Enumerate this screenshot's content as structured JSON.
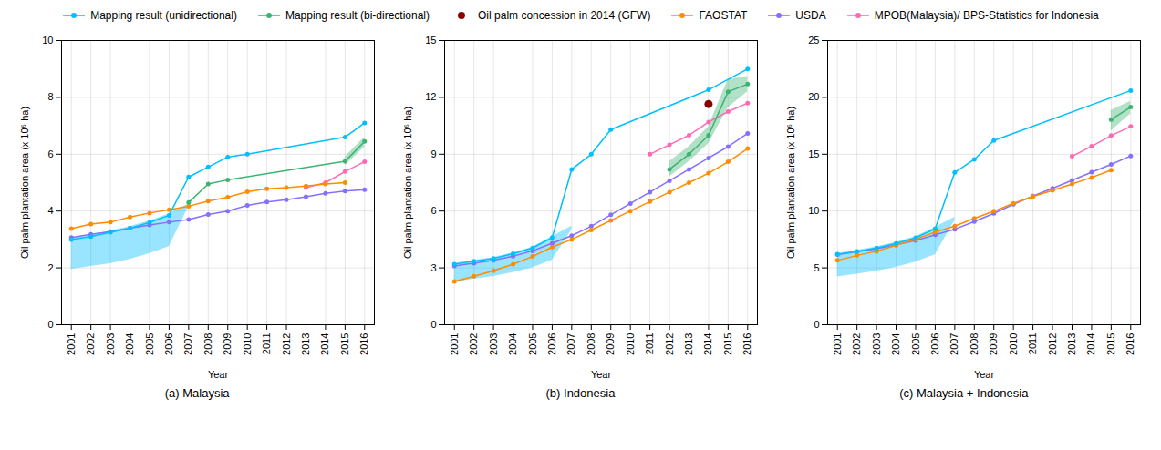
{
  "chart_data": [
    {
      "type": "line",
      "title": "(a) Malaysia",
      "xlabel": "Year",
      "ylabel": "Oil palm plantation area (x 10⁶ ha)",
      "x": [
        2001,
        2002,
        2003,
        2004,
        2005,
        2006,
        2007,
        2008,
        2009,
        2010,
        2011,
        2012,
        2013,
        2014,
        2015,
        2016
      ],
      "xlim": [
        2000.5,
        2016.5
      ],
      "xticks": [
        2001,
        2002,
        2003,
        2004,
        2005,
        2006,
        2007,
        2008,
        2009,
        2010,
        2011,
        2012,
        2013,
        2014,
        2015,
        2016
      ],
      "ylim": [
        0,
        10
      ],
      "yticks": [
        0,
        2,
        4,
        6,
        8,
        10
      ],
      "grid": true,
      "legend": "top",
      "marker": "circle",
      "series": [
        {
          "name": "Mapping result (unidirectional)",
          "color": "#00BFFF",
          "values": [
            3.0,
            3.1,
            3.25,
            3.4,
            3.6,
            3.85,
            5.2,
            5.55,
            5.9,
            6.0,
            null,
            null,
            null,
            null,
            6.6,
            7.1
          ],
          "lower": [
            1.95,
            2.05,
            2.15,
            2.3,
            2.5,
            2.75,
            4.15,
            null,
            null,
            null,
            null,
            null,
            null,
            null,
            null,
            null
          ],
          "upper": [
            3.05,
            3.15,
            3.3,
            3.45,
            3.65,
            3.9,
            4.25,
            null,
            null,
            null,
            null,
            null,
            null,
            null,
            null,
            null
          ]
        },
        {
          "name": "Mapping result (bi-directional)",
          "color": "#3CB371",
          "values": [
            null,
            null,
            null,
            null,
            null,
            null,
            4.3,
            4.95,
            5.1,
            null,
            null,
            null,
            null,
            null,
            5.75,
            6.45
          ],
          "lower": [
            null,
            null,
            null,
            null,
            null,
            null,
            null,
            null,
            null,
            null,
            null,
            null,
            null,
            null,
            5.6,
            6.25
          ],
          "upper": [
            null,
            null,
            null,
            null,
            null,
            null,
            null,
            null,
            null,
            null,
            null,
            null,
            null,
            null,
            5.9,
            6.6
          ]
        },
        {
          "name": "FAOSTAT",
          "color": "#FF8C00",
          "values": [
            3.38,
            3.54,
            3.61,
            3.79,
            3.93,
            4.05,
            4.17,
            4.35,
            4.49,
            4.68,
            4.78,
            4.82,
            4.88,
            4.95,
            5.0,
            null
          ]
        },
        {
          "name": "USDA",
          "color": "#8470FF",
          "values": [
            3.07,
            3.18,
            3.28,
            3.4,
            3.51,
            3.61,
            3.7,
            3.88,
            4.0,
            4.2,
            4.32,
            4.4,
            4.5,
            4.62,
            4.7,
            4.75
          ]
        },
        {
          "name": "MPOB(Malaysia)/ BPS-Statistics for Indonesia",
          "color": "#FF69B4",
          "values": [
            null,
            null,
            null,
            null,
            null,
            null,
            null,
            null,
            null,
            null,
            null,
            null,
            4.82,
            5.0,
            5.39,
            5.74
          ]
        }
      ]
    },
    {
      "type": "line",
      "title": "(b) Indonesia",
      "xlabel": "Year",
      "ylabel": "Oil palm plantation area (x 10⁶ ha)",
      "x": [
        2001,
        2002,
        2003,
        2004,
        2005,
        2006,
        2007,
        2008,
        2009,
        2010,
        2011,
        2012,
        2013,
        2014,
        2015,
        2016
      ],
      "xlim": [
        2000.5,
        2016.5
      ],
      "xticks": [
        2001,
        2002,
        2003,
        2004,
        2005,
        2006,
        2007,
        2008,
        2009,
        2010,
        2011,
        2012,
        2013,
        2014,
        2015,
        2016
      ],
      "ylim": [
        0,
        15
      ],
      "yticks": [
        0,
        3,
        6,
        9,
        12,
        15
      ],
      "grid": true,
      "legend": "top",
      "marker": "circle",
      "series": [
        {
          "name": "Mapping result (unidirectional)",
          "color": "#00BFFF",
          "values": [
            3.2,
            3.35,
            3.5,
            3.75,
            4.05,
            4.6,
            8.2,
            9.0,
            10.3,
            null,
            null,
            null,
            null,
            12.4,
            null,
            13.5
          ],
          "lower": [
            2.25,
            2.4,
            2.55,
            2.75,
            3.0,
            3.4,
            5.0,
            null,
            null,
            null,
            null,
            null,
            null,
            null,
            null,
            null
          ],
          "upper": [
            3.25,
            3.4,
            3.55,
            3.8,
            4.1,
            4.65,
            5.2,
            null,
            null,
            null,
            null,
            null,
            null,
            null,
            null,
            null
          ]
        },
        {
          "name": "Mapping result (bi-directional)",
          "color": "#3CB371",
          "values": [
            null,
            null,
            null,
            null,
            null,
            null,
            null,
            null,
            null,
            null,
            null,
            8.2,
            9.0,
            10.0,
            12.3,
            12.7
          ],
          "lower": [
            null,
            null,
            null,
            null,
            null,
            null,
            null,
            null,
            null,
            null,
            null,
            7.8,
            8.6,
            9.55,
            11.45,
            12.3
          ],
          "upper": [
            null,
            null,
            null,
            null,
            null,
            null,
            null,
            null,
            null,
            null,
            null,
            8.6,
            9.4,
            10.45,
            12.95,
            13.1
          ]
        },
        {
          "name": "Oil palm concession in 2014 (GFW)",
          "color": "#8B0000",
          "type": "scatter",
          "marker": "circle",
          "values": [
            null,
            null,
            null,
            null,
            null,
            null,
            null,
            null,
            null,
            null,
            null,
            null,
            null,
            11.65,
            null,
            null
          ]
        },
        {
          "name": "FAOSTAT",
          "color": "#FF8C00",
          "values": [
            2.28,
            2.56,
            2.85,
            3.2,
            3.6,
            4.1,
            4.5,
            5.0,
            5.5,
            6.0,
            6.5,
            7.0,
            7.5,
            8.0,
            8.6,
            9.3
          ]
        },
        {
          "name": "USDA",
          "color": "#8470FF",
          "values": [
            3.1,
            3.25,
            3.4,
            3.62,
            3.9,
            4.3,
            4.7,
            5.2,
            5.8,
            6.4,
            7.0,
            7.6,
            8.2,
            8.8,
            9.4,
            10.1
          ]
        },
        {
          "name": "MPOB(Malaysia)/ BPS-Statistics for Indonesia",
          "color": "#FF69B4",
          "values": [
            null,
            null,
            null,
            null,
            null,
            null,
            null,
            null,
            null,
            null,
            9.0,
            9.5,
            10.0,
            10.7,
            11.25,
            11.7
          ]
        }
      ]
    },
    {
      "type": "line",
      "title": "(c) Malaysia + Indonesia",
      "xlabel": "Year",
      "ylabel": "Oil palm plantation area (x 10⁶ ha)",
      "x": [
        2001,
        2002,
        2003,
        2004,
        2005,
        2006,
        2007,
        2008,
        2009,
        2010,
        2011,
        2012,
        2013,
        2014,
        2015,
        2016
      ],
      "xlim": [
        2000.5,
        2016.5
      ],
      "xticks": [
        2001,
        2002,
        2003,
        2004,
        2005,
        2006,
        2007,
        2008,
        2009,
        2010,
        2011,
        2012,
        2013,
        2014,
        2015,
        2016
      ],
      "ylim": [
        0,
        25
      ],
      "yticks": [
        0,
        5,
        10,
        15,
        20,
        25
      ],
      "grid": true,
      "legend": "top",
      "marker": "circle",
      "series": [
        {
          "name": "Mapping result (unidirectional)",
          "color": "#00BFFF",
          "values": [
            6.2,
            6.45,
            6.75,
            7.15,
            7.65,
            8.45,
            13.4,
            14.55,
            16.2,
            null,
            null,
            null,
            null,
            null,
            null,
            20.6
          ],
          "lower": [
            4.2,
            4.45,
            4.7,
            5.05,
            5.5,
            6.15,
            9.15,
            null,
            null,
            null,
            null,
            null,
            null,
            null,
            null,
            null
          ],
          "upper": [
            6.3,
            6.55,
            6.85,
            7.25,
            7.75,
            8.55,
            9.45,
            null,
            null,
            null,
            null,
            null,
            null,
            null,
            null,
            null
          ]
        },
        {
          "name": "Mapping result (bi-directional)",
          "color": "#3CB371",
          "values": [
            null,
            null,
            null,
            null,
            null,
            null,
            null,
            null,
            null,
            null,
            null,
            null,
            null,
            null,
            18.05,
            19.15
          ],
          "lower": [
            null,
            null,
            null,
            null,
            null,
            null,
            null,
            null,
            null,
            null,
            null,
            null,
            null,
            null,
            17.05,
            18.55
          ],
          "upper": [
            null,
            null,
            null,
            null,
            null,
            null,
            null,
            null,
            null,
            null,
            null,
            null,
            null,
            null,
            18.85,
            19.65
          ]
        },
        {
          "name": "FAOSTAT",
          "color": "#FF8C00",
          "values": [
            5.66,
            6.1,
            6.46,
            6.99,
            7.53,
            8.15,
            8.67,
            9.35,
            9.99,
            10.68,
            11.28,
            11.82,
            12.38,
            12.95,
            13.6,
            null
          ]
        },
        {
          "name": "USDA",
          "color": "#8470FF",
          "values": [
            6.17,
            6.43,
            6.68,
            7.02,
            7.41,
            7.91,
            8.4,
            9.08,
            9.8,
            10.6,
            11.32,
            12.0,
            12.7,
            13.42,
            14.1,
            14.85
          ]
        },
        {
          "name": "MPOB(Malaysia)/ BPS-Statistics for Indonesia",
          "color": "#FF69B4",
          "values": [
            null,
            null,
            null,
            null,
            null,
            null,
            null,
            null,
            null,
            null,
            null,
            null,
            14.82,
            15.7,
            16.64,
            17.44
          ]
        }
      ]
    }
  ]
}
